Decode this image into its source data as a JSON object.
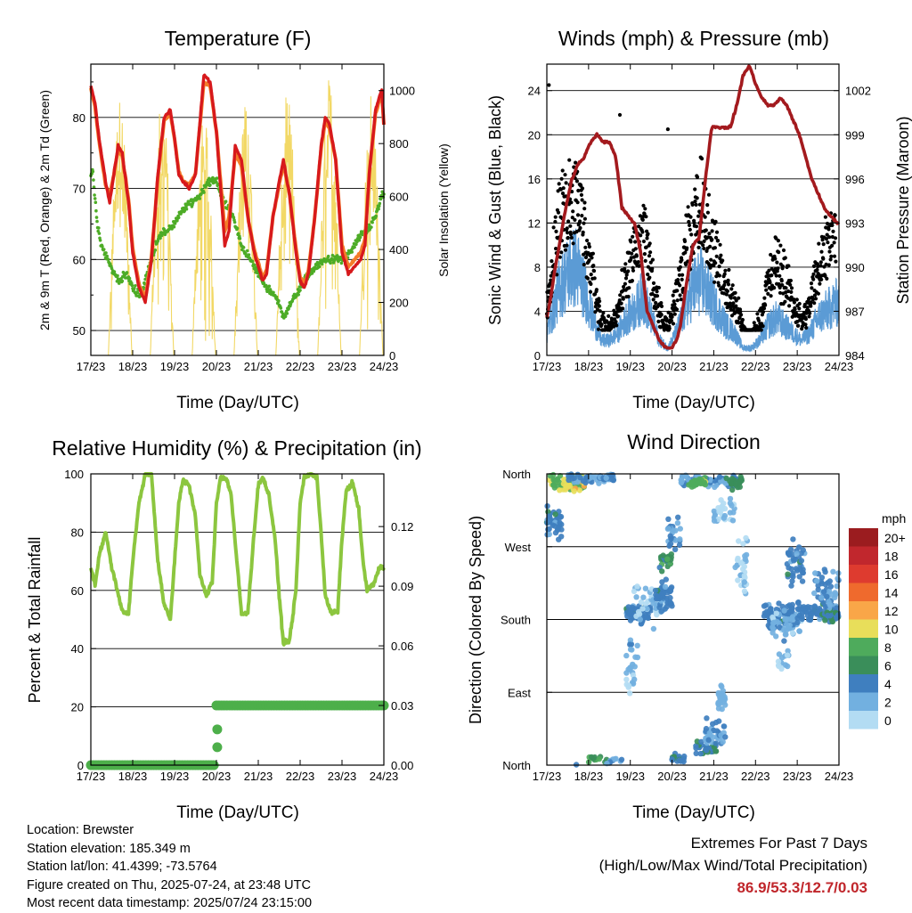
{
  "chart_data": [
    {
      "type": "line",
      "title": "Temperature (F)",
      "xlabel": "Time (Day/UTC)",
      "ylabel": "2m & 9m T (Red, Orange) & 2m Td (Green)",
      "ylabel2": "Solar Insolation (Yellow)",
      "x_ticks": [
        "17/23",
        "18/23",
        "19/23",
        "20/23",
        "21/23",
        "22/23",
        "23/23",
        "24/23"
      ],
      "y_ticks": [
        "50",
        "60",
        "70",
        "80"
      ],
      "y2_ticks": [
        "0",
        "200",
        "400",
        "600",
        "800",
        "1000"
      ],
      "ylim": [
        46.5,
        87.5
      ],
      "y2lim": [
        0,
        1100
      ],
      "grid": true,
      "series": [
        {
          "name": "2m T",
          "color": "#d7191c",
          "x_days": [
            0,
            0.1,
            0.2,
            0.35,
            0.45,
            0.55,
            0.65,
            0.75,
            0.9,
            1.0,
            1.15,
            1.3,
            1.45,
            1.6,
            1.75,
            1.9,
            2.0,
            2.1,
            2.2,
            2.35,
            2.5,
            2.6,
            2.7,
            2.85,
            3.0,
            3.1,
            3.2,
            3.3,
            3.45,
            3.6,
            3.75,
            3.9,
            4.0,
            4.1,
            4.2,
            4.35,
            4.5,
            4.6,
            4.75,
            4.9,
            5.0,
            5.1,
            5.2,
            5.35,
            5.5,
            5.6,
            5.7,
            5.85,
            6.0,
            6.15,
            6.3,
            6.45,
            6.55,
            6.65,
            6.8,
            6.95,
            7.0
          ],
          "values": [
            84.5,
            82,
            77,
            71,
            68,
            72,
            76,
            75,
            68,
            61,
            56,
            54,
            60,
            72,
            80,
            81,
            77,
            72,
            71,
            70,
            72,
            79,
            86,
            85,
            78,
            70,
            62,
            64,
            76,
            74,
            66,
            61,
            59,
            57,
            58,
            66,
            71,
            74,
            69,
            61,
            57,
            56,
            58,
            66,
            76,
            80,
            79,
            74,
            61,
            58,
            59,
            60,
            62,
            72,
            81,
            84,
            79
          ]
        },
        {
          "name": "9m T",
          "color": "#f47c2a",
          "x_days": [
            0,
            0.1,
            0.2,
            0.35,
            0.45,
            0.55,
            0.65,
            0.75,
            0.9,
            1.0,
            1.15,
            1.3,
            1.45,
            1.6,
            1.75,
            1.9,
            2.0,
            2.1,
            2.2,
            2.35,
            2.5,
            2.6,
            2.7,
            2.85,
            3.0,
            3.1,
            3.2,
            3.3,
            3.45,
            3.6,
            3.75,
            3.9,
            4.0,
            4.1,
            4.2,
            4.35,
            4.5,
            4.6,
            4.75,
            4.9,
            5.0,
            5.1,
            5.2,
            5.35,
            5.5,
            5.6,
            5.7,
            5.85,
            6.0,
            6.15,
            6.3,
            6.45,
            6.55,
            6.65,
            6.8,
            6.95,
            7.0
          ],
          "values": [
            84,
            81.5,
            76.5,
            70.5,
            69,
            72,
            75.5,
            74.5,
            68.5,
            61.5,
            56.5,
            54.5,
            60.5,
            71.5,
            79.5,
            80.5,
            77,
            72.5,
            71,
            70.5,
            72,
            78.5,
            85,
            84.5,
            78,
            71,
            64,
            66,
            75,
            73,
            66,
            61.5,
            59.5,
            57.5,
            58.5,
            66,
            70.5,
            73.5,
            69,
            61.5,
            57.5,
            56.5,
            58.5,
            66,
            75.5,
            79.5,
            78.5,
            74,
            62,
            59,
            60,
            61,
            63,
            72,
            80.5,
            83.5,
            79
          ]
        },
        {
          "name": "2m Td",
          "color": "#4dac26",
          "x_days": [
            0,
            0.05,
            0.15,
            0.25,
            0.4,
            0.55,
            0.7,
            0.85,
            1.0,
            1.2,
            1.4,
            1.6,
            1.8,
            2.0,
            2.2,
            2.4,
            2.6,
            2.8,
            3.0,
            3.2,
            3.4,
            3.6,
            3.8,
            4.0,
            4.2,
            4.4,
            4.6,
            4.8,
            5.0,
            5.2,
            5.4,
            5.6,
            5.8,
            6.0,
            6.2,
            6.4,
            6.6,
            6.8,
            6.95,
            7.0
          ],
          "values": [
            72,
            72,
            65,
            62,
            60,
            58,
            57,
            58,
            56,
            55,
            59,
            63,
            64,
            65,
            67,
            68,
            69,
            71,
            71,
            68,
            66,
            62,
            60,
            58,
            56,
            55,
            52,
            54,
            56,
            58,
            59,
            60,
            60,
            60,
            61,
            63,
            64,
            66,
            69,
            69
          ]
        },
        {
          "name": "Solar Insolation",
          "color": "#f2d865",
          "axis": "right",
          "peaks_days": [
            0.7,
            1.7,
            2.7,
            3.7,
            4.7,
            5.7,
            6.7
          ],
          "peak_values": [
            980,
            1000,
            920,
            960,
            1000,
            1060,
            990
          ]
        }
      ]
    },
    {
      "type": "scatter",
      "title": "Winds (mph) & Pressure (mb)",
      "xlabel": "Time (Day/UTC)",
      "ylabel": "Sonic Wind & Gust (Blue, Black)",
      "ylabel2": "Station Pressure (Maroon)",
      "x_ticks": [
        "17/23",
        "18/23",
        "19/23",
        "20/23",
        "21/23",
        "22/23",
        "23/23",
        "24/23"
      ],
      "y_ticks": [
        "0",
        "4",
        "8",
        "12",
        "16",
        "20",
        "24"
      ],
      "y2_ticks": [
        "984",
        "987",
        "990",
        "993",
        "996",
        "999",
        "1002"
      ],
      "ylim": [
        0,
        26.4
      ],
      "y2lim": [
        984,
        1003.8
      ],
      "grid": true,
      "series": [
        {
          "name": "Station Pressure",
          "color": "#a31a1e",
          "x_days": [
            0,
            0.1,
            0.2,
            0.3,
            0.45,
            0.6,
            0.75,
            0.9,
            1.05,
            1.2,
            1.35,
            1.5,
            1.65,
            1.8,
            1.95,
            2.1,
            2.25,
            2.4,
            2.55,
            2.7,
            2.85,
            3.0,
            3.1,
            3.2,
            3.35,
            3.5,
            3.65,
            3.8,
            3.95,
            4.1,
            4.25,
            4.4,
            4.55,
            4.7,
            4.85,
            5.0,
            5.15,
            5.3,
            5.45,
            5.6,
            5.75,
            5.9,
            6.05,
            6.2,
            6.35,
            6.5,
            6.65,
            6.8,
            6.95,
            7.0
          ],
          "values": [
            986.6,
            988,
            990,
            991.5,
            994,
            996,
            997,
            997.5,
            998.5,
            999,
            998.5,
            998.5,
            997.5,
            994,
            993.5,
            993,
            991,
            987,
            986,
            985,
            984.5,
            984.5,
            985,
            986,
            989,
            991.5,
            992,
            996,
            999.5,
            999.5,
            999.5,
            999.5,
            1001,
            1003,
            1003.7,
            1002.5,
            1001.5,
            1001,
            1001,
            1001.5,
            1001,
            1000,
            999,
            997.5,
            996,
            995,
            994,
            993.5,
            993,
            993
          ]
        },
        {
          "name": "Wind (envelope)",
          "color": "#5b9bd5",
          "x_days": [
            0,
            0.1,
            0.3,
            0.5,
            0.7,
            0.9,
            1.1,
            1.3,
            1.5,
            1.7,
            1.9,
            2.1,
            2.3,
            2.5,
            2.7,
            2.9,
            3.1,
            3.3,
            3.5,
            3.7,
            3.9,
            4.1,
            4.3,
            4.5,
            4.7,
            4.9,
            5.1,
            5.3,
            5.5,
            5.7,
            5.9,
            6.1,
            6.3,
            6.5,
            6.7,
            6.9,
            7.0
          ],
          "values": [
            3,
            5,
            9,
            11,
            12,
            9,
            5,
            2,
            2,
            3,
            5,
            6,
            8,
            5,
            2,
            1,
            3,
            6,
            9,
            10,
            8,
            6,
            4,
            3,
            1,
            1,
            2,
            4,
            5,
            4,
            3,
            2,
            3,
            5,
            6,
            7,
            7
          ]
        },
        {
          "name": "Gust (envelope)",
          "color": "#000000",
          "x_days": [
            0,
            0.1,
            0.3,
            0.5,
            0.7,
            0.9,
            1.1,
            1.3,
            1.5,
            1.7,
            1.9,
            2.1,
            2.3,
            2.5,
            2.7,
            2.9,
            3.1,
            3.3,
            3.5,
            3.7,
            3.9,
            4.1,
            4.3,
            4.5,
            4.7,
            4.9,
            5.1,
            5.3,
            5.5,
            5.7,
            5.9,
            6.1,
            6.3,
            6.5,
            6.7,
            6.9,
            7.0
          ],
          "values": [
            6,
            10,
            16,
            18,
            19,
            14,
            9,
            4,
            3,
            5,
            9,
            12,
            14,
            10,
            5,
            3,
            7,
            11,
            16,
            18,
            14,
            11,
            8,
            6,
            3,
            2,
            4,
            8,
            11,
            9,
            6,
            4,
            6,
            10,
            13,
            15,
            15
          ]
        }
      ]
    },
    {
      "type": "line",
      "title": "Relative Humidity (%) & Precipitation (in)",
      "xlabel": "Time (Day/UTC)",
      "ylabel": "Percent & Total Rainfall",
      "x_ticks": [
        "17/23",
        "18/23",
        "19/23",
        "20/23",
        "21/23",
        "22/23",
        "23/23",
        "24/23"
      ],
      "y_ticks": [
        "0",
        "20",
        "40",
        "60",
        "80",
        "100"
      ],
      "y2_ticks": [
        "0.00",
        "0.03",
        "0.06",
        "0.09",
        "0.12"
      ],
      "ylim": [
        0,
        100
      ],
      "y2lim": [
        0,
        0.1465
      ],
      "grid": true,
      "series": [
        {
          "name": "Relative Humidity",
          "color": "#8cc63f",
          "x_days": [
            0,
            0.1,
            0.2,
            0.35,
            0.5,
            0.6,
            0.75,
            0.9,
            1.0,
            1.15,
            1.3,
            1.45,
            1.6,
            1.75,
            1.9,
            2.0,
            2.1,
            2.2,
            2.35,
            2.5,
            2.6,
            2.75,
            2.9,
            3.0,
            3.1,
            3.25,
            3.35,
            3.5,
            3.6,
            3.75,
            3.9,
            4.0,
            4.1,
            4.25,
            4.4,
            4.5,
            4.6,
            4.75,
            4.9,
            5.0,
            5.1,
            5.25,
            5.4,
            5.5,
            5.6,
            5.75,
            5.9,
            6.0,
            6.1,
            6.25,
            6.4,
            6.5,
            6.6,
            6.75,
            6.9,
            7.0
          ],
          "values": [
            68,
            62,
            72,
            80,
            68,
            62,
            53,
            52,
            70,
            90,
            100,
            100,
            70,
            55,
            50,
            70,
            90,
            98,
            96,
            85,
            66,
            58,
            63,
            90,
            99,
            98,
            93,
            68,
            52,
            52,
            80,
            96,
            99,
            93,
            78,
            58,
            42,
            43,
            60,
            90,
            99,
            100,
            99,
            80,
            58,
            52,
            53,
            78,
            94,
            97,
            88,
            70,
            60,
            62,
            68,
            68
          ]
        },
        {
          "name": "Total Rainfall",
          "color": "#4daf4a",
          "axis": "right",
          "x_days": [
            0,
            3.0,
            3.01,
            3.02,
            3.03,
            3.05,
            7.0
          ],
          "values": [
            0,
            0,
            0.009,
            0.018,
            0.027,
            0.03,
            0.03
          ]
        }
      ]
    },
    {
      "type": "scatter",
      "title": "Wind Direction",
      "xlabel": "Time (Day/UTC)",
      "ylabel": "Direction (Colored By Speed)",
      "x_ticks": [
        "17/23",
        "18/23",
        "19/23",
        "20/23",
        "21/23",
        "22/23",
        "23/23",
        "24/23"
      ],
      "y_ticks": [
        "North",
        "East",
        "South",
        "West",
        "North"
      ],
      "ylim": [
        0,
        360
      ],
      "grid": true,
      "legend": {
        "title": "mph",
        "labels": [
          "20+",
          "18",
          "16",
          "14",
          "12",
          "10",
          "8",
          "6",
          "4",
          "2",
          "0"
        ],
        "colors": [
          "#9b1c1f",
          "#c1272d",
          "#de3b2f",
          "#ef6a2d",
          "#f9a648",
          "#e8de5a",
          "#4eab5c",
          "#3a8e5a",
          "#3f7fbf",
          "#72b0e0",
          "#b3dcf3"
        ],
        "placement": "right"
      }
    }
  ],
  "info": {
    "location": "Location: Brewster",
    "elevation": "Station elevation: 185.349 m",
    "latlon": "Station lat/lon: 41.4399; -73.5764",
    "created": "Figure created on Thu, 2025-07-24, at 23:48 UTC",
    "timestamp": "Most recent data timestamp: 2025/07/24 23:15:00"
  },
  "extremes": {
    "title": "Extremes For Past 7 Days",
    "subtitle": "(High/Low/Max Wind/Total Precipitation)",
    "values": "86.9/53.3/12.7/0.03"
  }
}
